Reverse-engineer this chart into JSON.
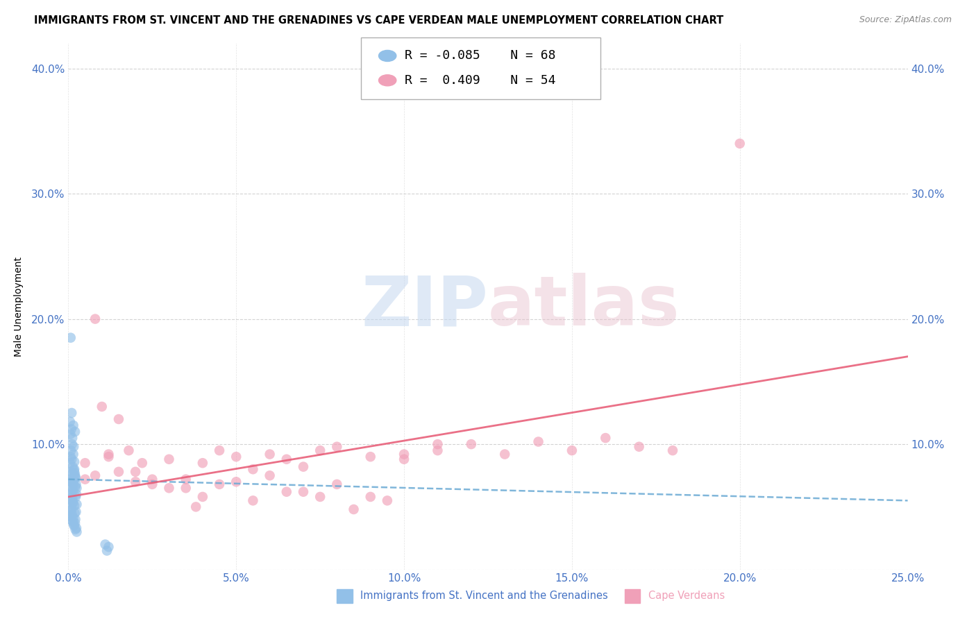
{
  "title": "IMMIGRANTS FROM ST. VINCENT AND THE GRENADINES VS CAPE VERDEAN MALE UNEMPLOYMENT CORRELATION CHART",
  "source": "Source: ZipAtlas.com",
  "ylabel": "Male Unemployment",
  "legend_label1": "Immigrants from St. Vincent and the Grenadines",
  "legend_label2": "Cape Verdeans",
  "r1": -0.085,
  "n1": 68,
  "r2": 0.409,
  "n2": 54,
  "color1": "#92c0e8",
  "color2": "#f0a0b8",
  "trend1_color": "#6aaad4",
  "trend2_color": "#e8607a",
  "tick_color": "#4472c4",
  "grid_color": "#c8c8c8",
  "background_color": "#ffffff",
  "xlim": [
    0.0,
    0.25
  ],
  "ylim": [
    0.0,
    0.42
  ],
  "blue_x": [
    0.0008,
    0.001,
    0.0005,
    0.0012,
    0.0007,
    0.0015,
    0.002,
    0.0018,
    0.0022,
    0.0025,
    0.0008,
    0.0012,
    0.0006,
    0.0009,
    0.0011,
    0.0014,
    0.0016,
    0.0019,
    0.0021,
    0.0024,
    0.0005,
    0.0007,
    0.001,
    0.0013,
    0.0017,
    0.002,
    0.0023,
    0.0008,
    0.0011,
    0.0015,
    0.0018,
    0.0006,
    0.0009,
    0.0012,
    0.0016,
    0.0022,
    0.0025,
    0.0007,
    0.001,
    0.0014,
    0.0019,
    0.0008,
    0.0013,
    0.0017,
    0.0021,
    0.0006,
    0.0011,
    0.0015,
    0.002,
    0.0024,
    0.0009,
    0.0014,
    0.0018,
    0.0023,
    0.0008,
    0.0012,
    0.0016,
    0.0021,
    0.0025,
    0.011,
    0.012,
    0.0115,
    0.0005,
    0.001,
    0.0015,
    0.002,
    0.0007,
    0.0013
  ],
  "blue_y": [
    0.06,
    0.055,
    0.07,
    0.065,
    0.072,
    0.068,
    0.075,
    0.08,
    0.073,
    0.065,
    0.078,
    0.058,
    0.062,
    0.076,
    0.069,
    0.063,
    0.071,
    0.077,
    0.066,
    0.06,
    0.085,
    0.09,
    0.088,
    0.082,
    0.079,
    0.074,
    0.068,
    0.095,
    0.1,
    0.092,
    0.086,
    0.108,
    0.112,
    0.105,
    0.098,
    0.058,
    0.052,
    0.05,
    0.048,
    0.053,
    0.045,
    0.042,
    0.038,
    0.035,
    0.04,
    0.047,
    0.044,
    0.041,
    0.037,
    0.033,
    0.056,
    0.054,
    0.051,
    0.046,
    0.043,
    0.039,
    0.036,
    0.032,
    0.03,
    0.02,
    0.018,
    0.015,
    0.118,
    0.125,
    0.115,
    0.11,
    0.185,
    0.07
  ],
  "pink_x": [
    0.005,
    0.008,
    0.01,
    0.005,
    0.008,
    0.012,
    0.015,
    0.018,
    0.02,
    0.025,
    0.03,
    0.035,
    0.04,
    0.045,
    0.05,
    0.055,
    0.06,
    0.065,
    0.07,
    0.075,
    0.08,
    0.09,
    0.1,
    0.11,
    0.12,
    0.13,
    0.14,
    0.15,
    0.16,
    0.17,
    0.03,
    0.04,
    0.05,
    0.06,
    0.07,
    0.08,
    0.09,
    0.1,
    0.11,
    0.02,
    0.025,
    0.035,
    0.045,
    0.055,
    0.065,
    0.075,
    0.085,
    0.095,
    0.015,
    0.022,
    0.038,
    0.012,
    0.18,
    0.2
  ],
  "pink_y": [
    0.072,
    0.2,
    0.13,
    0.085,
    0.075,
    0.09,
    0.078,
    0.095,
    0.07,
    0.068,
    0.088,
    0.072,
    0.085,
    0.095,
    0.09,
    0.08,
    0.092,
    0.088,
    0.082,
    0.095,
    0.098,
    0.09,
    0.092,
    0.095,
    0.1,
    0.092,
    0.102,
    0.095,
    0.105,
    0.098,
    0.065,
    0.058,
    0.07,
    0.075,
    0.062,
    0.068,
    0.058,
    0.088,
    0.1,
    0.078,
    0.072,
    0.065,
    0.068,
    0.055,
    0.062,
    0.058,
    0.048,
    0.055,
    0.12,
    0.085,
    0.05,
    0.092,
    0.095,
    0.34
  ],
  "trend1_x": [
    0.0,
    0.25
  ],
  "trend1_y": [
    0.072,
    0.055
  ],
  "trend2_x": [
    0.0,
    0.25
  ],
  "trend2_y": [
    0.058,
    0.17
  ]
}
